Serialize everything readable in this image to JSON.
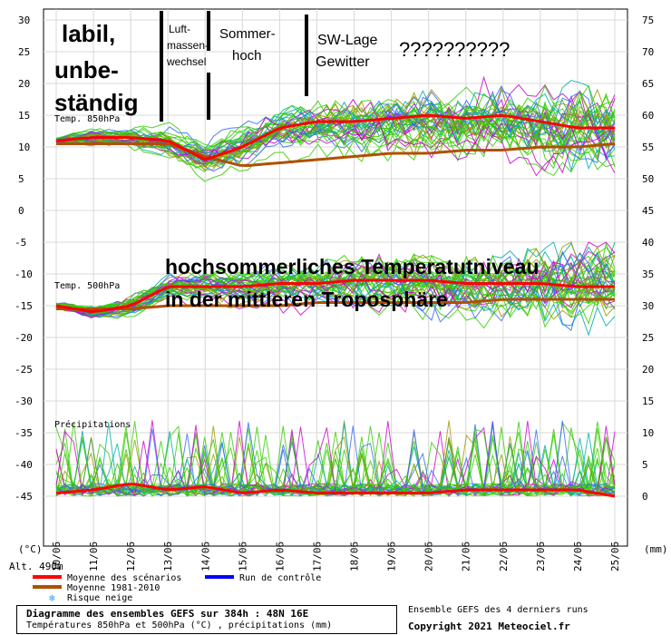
{
  "chart_data": [
    {
      "type": "line",
      "panel_label": "Temp. 850hPa",
      "y_left_ticks": [
        0,
        5,
        10,
        15,
        20,
        25,
        30
      ],
      "y_right_ticks": [
        45,
        50,
        55,
        60,
        65,
        70,
        75
      ],
      "ylim": [
        0,
        30
      ],
      "x": [
        "10/06",
        "11/06",
        "12/06",
        "13/06",
        "14/06",
        "15/06",
        "16/06",
        "17/06",
        "18/06",
        "19/06",
        "20/06",
        "21/06",
        "22/06",
        "23/06",
        "24/06",
        "25/06"
      ],
      "series": [
        {
          "name": "Moyenne des scénarios",
          "color": "#ff0000",
          "values": [
            11,
            11.5,
            11.5,
            11,
            8,
            10,
            13,
            14,
            14,
            14.5,
            15,
            14.5,
            15,
            14,
            13,
            13
          ]
        },
        {
          "name": "Moyenne 1981-2010",
          "color": "#b05000",
          "values": [
            10.5,
            10.5,
            10.5,
            10.5,
            8.5,
            7,
            7.5,
            8,
            8.5,
            9,
            9,
            9.5,
            9.5,
            10,
            10,
            10.5
          ]
        }
      ]
    },
    {
      "type": "line",
      "panel_label": "Temp. 500hPa",
      "y_left_ticks": [
        -45,
        -40,
        -35,
        -30,
        -25,
        -20,
        -15,
        -10,
        -5
      ],
      "y_right_ticks": [
        0,
        5,
        10,
        15,
        20,
        25,
        30,
        35,
        40
      ],
      "ylim": [
        -45,
        -5
      ],
      "x": [
        "10/06",
        "11/06",
        "12/06",
        "13/06",
        "14/06",
        "15/06",
        "16/06",
        "17/06",
        "18/06",
        "19/06",
        "20/06",
        "21/06",
        "22/06",
        "23/06",
        "24/06",
        "25/06"
      ],
      "series": [
        {
          "name": "Moyenne des scénarios",
          "color": "#ff0000",
          "values": [
            -15,
            -16,
            -15,
            -12,
            -12,
            -12,
            -11.5,
            -11.5,
            -11,
            -11,
            -11,
            -11.5,
            -11.5,
            -11.5,
            -12,
            -12
          ]
        },
        {
          "name": "Moyenne 1981-2010",
          "color": "#b05000",
          "values": [
            -15.5,
            -15.5,
            -15.5,
            -15,
            -15,
            -15,
            -15,
            -14.5,
            -14.5,
            -14.5,
            -14.5,
            -14.5,
            -14,
            -14,
            -14,
            -14
          ]
        }
      ]
    },
    {
      "type": "line",
      "panel_label": "Précipitations",
      "unit": "(mm)",
      "ylim": [
        0,
        40
      ],
      "x": [
        "10/06",
        "11/06",
        "12/06",
        "13/06",
        "14/06",
        "15/06",
        "16/06",
        "17/06",
        "18/06",
        "19/06",
        "20/06",
        "21/06",
        "22/06",
        "23/06",
        "24/06",
        "25/06"
      ],
      "series": [
        {
          "name": "Moyenne des scénarios",
          "color": "#ff0000",
          "values": [
            0.5,
            1,
            2,
            1,
            1.5,
            0.5,
            1,
            0.5,
            0.5,
            0.5,
            0.5,
            1,
            1,
            1,
            1,
            0
          ]
        }
      ]
    }
  ],
  "axis": {
    "left_unit": "(°C)",
    "right_unit": "(mm)",
    "altitude": "Alt. 490m"
  },
  "legend": {
    "mean": "Moyenne des scénarios",
    "climo": "Moyenne 1981-2010",
    "snow": "Risque neige",
    "control": "Run de contrôle"
  },
  "annotations": {
    "labil_1": "labil,",
    "labil_2": "unbe-",
    "labil_3": "ständig",
    "luft_1": "Luft-",
    "luft_2": "massen-",
    "luft_3": "wechsel",
    "sommer_1": "Sommer-",
    "sommer_2": "hoch",
    "sw_1": "SW-Lage",
    "sw_2": "Gewitter",
    "question": "??????????",
    "hoch_1": "hochsommerliches Temperatutniveau",
    "hoch_2": "in der mittleren Troposphäre"
  },
  "footer": {
    "title": "Diagramme des ensembles GEFS sur 384h : 48N 16E",
    "subtitle": "Températures 850hPa et 500hPa (°C) , précipitations (mm)",
    "credit_line1": "Ensemble GEFS des 4 derniers runs",
    "credit_line2": "Copyright 2021 Meteociel.fr"
  },
  "colors": {
    "mean": "#ff0000",
    "climo": "#b05000",
    "control": "#0000ff",
    "ensemble_main": "#33cc00",
    "ensemble_alt": [
      "#cc00cc",
      "#999900",
      "#00aaaa",
      "#3366ff"
    ]
  }
}
